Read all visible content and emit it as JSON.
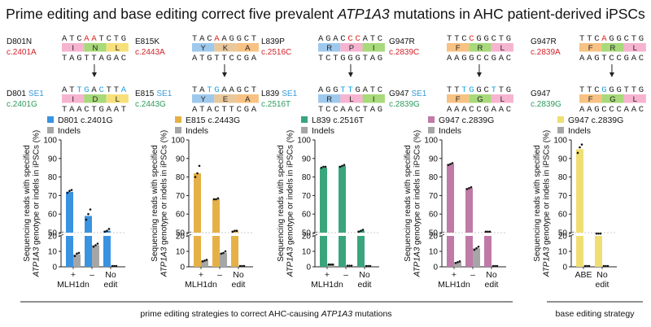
{
  "title": {
    "before": "Prime editing and base editing correct five prevalent ",
    "gene": "ATP1A3",
    "after": " mutations in AHC patient-derived iPSCs"
  },
  "colors": {
    "mutation_label": "#d2232a",
    "corrected_label": "#2e9a5e",
    "se_label": "#3a9ad9",
    "indels": "#a6a6a6",
    "highlight_base_top": "#e0241b",
    "highlight_base_bottom": "#1aa0e0",
    "codon_pink": "#f6b4d0",
    "codon_green": "#a8d97a",
    "codon_yellow": "#f7e07c",
    "codon_blue": "#9fc9ec",
    "codon_orange": "#f7c283",
    "codon_tan": "#e9c89b"
  },
  "panels": [
    {
      "mut_id": "D801N",
      "mut_cdna": "c.2401A",
      "mut_top_seq": "ATCAATCTG",
      "mut_aa": [
        "I",
        "N",
        "L"
      ],
      "mut_bottom_seq": "TAGTTAGAC",
      "corr_id": "D801",
      "corr_se": "SE1",
      "corr_cdna": "c.2401G",
      "corr_top_seq": "ATTGACTTA",
      "corr_aa": [
        "I",
        "D",
        "L"
      ],
      "corr_bottom_seq": "TAACTGAAT",
      "legend_main": "D801 c.2401G",
      "legend_indel": "Indels",
      "color": "#3a93e0"
    },
    {
      "mut_id": "E815K",
      "mut_cdna": "c.2443A",
      "mut_top_seq": "TACAAGGCT",
      "mut_aa": [
        "Y",
        "K",
        "A"
      ],
      "mut_bottom_seq": "ATGTTCCGA",
      "corr_id": "E815",
      "corr_se": "SE1",
      "corr_cdna": "c.2443G",
      "corr_top_seq": "TATGAAGCT",
      "corr_aa": [
        "Y",
        "E",
        "A"
      ],
      "corr_bottom_seq": "ATACTTCGA",
      "legend_main": "E815 c.2443G",
      "legend_indel": "Indels",
      "color": "#e5b147"
    },
    {
      "mut_id": "L839P",
      "mut_cdna": "c.2516C",
      "mut_top_seq": "AGACCCATC",
      "mut_aa": [
        "R",
        "P",
        "I"
      ],
      "mut_bottom_seq": "TCTGGGTAG",
      "corr_id": "L839",
      "corr_se": "SE1",
      "corr_cdna": "c.2516T",
      "corr_top_seq": "AGGTTGATC",
      "corr_aa": [
        "R",
        "L",
        "I"
      ],
      "corr_bottom_seq": "TCCAACTAG",
      "legend_main": "L839 c.2516T",
      "legend_indel": "Indels",
      "color": "#3aa57c"
    },
    {
      "mut_id": "G947R",
      "mut_cdna": "c.2839C",
      "mut_top_seq": "TTCCGGCTG",
      "mut_aa": [
        "F",
        "R",
        "L"
      ],
      "mut_bottom_seq": "AAGGCCGAC",
      "corr_id": "G947",
      "corr_se": "SE1",
      "corr_cdna": "c.2839G",
      "corr_top_seq": "TTTGGCTTG",
      "corr_aa": [
        "F",
        "G",
        "L"
      ],
      "corr_bottom_seq": "AAACCGAAC",
      "legend_main": "G947 c.2839G",
      "legend_indel": "Indels",
      "color": "#c07aa8"
    },
    {
      "mut_id": "G947R",
      "mut_cdna": "c.2839A",
      "mut_top_seq": "TTCAGGCTG",
      "mut_aa": [
        "F",
        "R",
        "L"
      ],
      "mut_bottom_seq": "AAGTCCGAC",
      "corr_id": "G947",
      "corr_se": "",
      "corr_cdna": "c.2839G",
      "corr_top_seq": "TTCGGGTTG",
      "corr_aa": [
        "F",
        "G",
        "L"
      ],
      "corr_bottom_seq": "AAGCCCAAC",
      "legend_main": "G947 c.2839G",
      "legend_indel": "Indels",
      "color": "#f1de72"
    }
  ],
  "chart_data": [
    {
      "type": "bar",
      "ylabel_line1": "Sequencing reads with specified",
      "ylabel_gene": "ATP1A3",
      "ylabel_after": " genotype or indels in iPSCs (%)",
      "y_ticks": [
        0,
        10,
        20,
        50,
        60,
        70,
        80,
        90,
        100
      ],
      "y_break": [
        20,
        50
      ],
      "categories": [
        "+\nMLH1dn",
        "–",
        "No\nedit"
      ],
      "series": [
        {
          "name": "D801 c.2401G",
          "values": [
            72,
            59,
            51
          ],
          "points": [
            [
              71.5,
              72.5,
              73
            ],
            [
              57,
              60,
              62.5
            ],
            [
              50.5,
              51,
              52
            ]
          ]
        },
        {
          "name": "Indels",
          "values": [
            8,
            14,
            0.5
          ],
          "points": [
            [
              7,
              8.5,
              9
            ],
            [
              13,
              14,
              15
            ],
            [
              0.5,
              0.5,
              0.5
            ]
          ]
        }
      ]
    },
    {
      "type": "bar",
      "ylabel_line1": "Sequencing reads with specified",
      "ylabel_gene": "ATP1A3",
      "ylabel_after": " genotype or indels in iPSCs (%)",
      "y_ticks": [
        0,
        10,
        20,
        50,
        60,
        70,
        80,
        90,
        100
      ],
      "y_break": [
        20,
        50
      ],
      "categories": [
        "+\nMLH1dn",
        "–",
        "No\nedit"
      ],
      "series": [
        {
          "name": "E815 c.2443G",
          "values": [
            82,
            68,
            51
          ],
          "points": [
            [
              80,
              82,
              86
            ],
            [
              68,
              68,
              68.5
            ],
            [
              50.5,
              51,
              51
            ]
          ]
        },
        {
          "name": "Indels",
          "values": [
            4,
            9,
            0.5
          ],
          "points": [
            [
              3.5,
              4,
              4.5
            ],
            [
              8.5,
              9,
              10
            ],
            [
              0.5,
              0.5,
              0.5
            ]
          ]
        }
      ]
    },
    {
      "type": "bar",
      "ylabel_line1": "Sequencing reads with specified",
      "ylabel_gene": "ATP1A3",
      "ylabel_after": " genotype or indels in iPSCs (%)",
      "y_ticks": [
        0,
        10,
        20,
        50,
        60,
        70,
        80,
        90,
        100
      ],
      "y_break": [
        20,
        50
      ],
      "categories": [
        "+\nMLH1dn",
        "–",
        "No\nedit"
      ],
      "series": [
        {
          "name": "L839 c.2516T",
          "values": [
            85,
            86,
            51
          ],
          "points": [
            [
              85,
              85.5,
              85.5
            ],
            [
              85.5,
              86,
              86.5
            ],
            [
              50.5,
              51,
              51.5
            ]
          ]
        },
        {
          "name": "Indels",
          "values": [
            1.5,
            0.7,
            0.5
          ],
          "points": [
            [
              1.5,
              1.5,
              1.5
            ],
            [
              0.7,
              0.7,
              0.7
            ],
            [
              0.5,
              0.5,
              0.5
            ]
          ]
        }
      ]
    },
    {
      "type": "bar",
      "ylabel_line1": "Sequencing reads with specified",
      "ylabel_gene": "ATP1A3",
      "ylabel_after": " genotype or indels in iPSCs (%)",
      "y_ticks": [
        0,
        10,
        20,
        50,
        60,
        70,
        80,
        90,
        100
      ],
      "y_break": [
        20,
        50
      ],
      "categories": [
        "+\nMLH1dn",
        "–",
        "No\nedit"
      ],
      "series": [
        {
          "name": "G947 c.2839G",
          "values": [
            87,
            74,
            50.5
          ],
          "points": [
            [
              86.5,
              87,
              87.5
            ],
            [
              73.5,
              74,
              74.5
            ],
            [
              50.5,
              50.5,
              50.5
            ]
          ]
        },
        {
          "name": "Indels",
          "values": [
            3,
            12,
            0.5
          ],
          "points": [
            [
              2.5,
              3,
              3.5
            ],
            [
              11,
              12,
              13
            ],
            [
              0.5,
              0.5,
              0.5
            ]
          ]
        }
      ]
    },
    {
      "type": "bar",
      "ylabel_line1": "Sequencing reads with specified",
      "ylabel_gene": "ATP1A3",
      "ylabel_after": " genotype or indels in iPSCs (%)",
      "y_ticks": [
        0,
        10,
        20,
        50,
        60,
        70,
        80,
        90,
        100
      ],
      "y_break": [
        20,
        50
      ],
      "categories": [
        "ABE",
        "No\nedit"
      ],
      "series": [
        {
          "name": "G947 c.2839G",
          "values": [
            95,
            49.5
          ],
          "points": [
            [
              93,
              96,
              97.5
            ],
            [
              49.5,
              49.5,
              49.5
            ]
          ]
        },
        {
          "name": "Indels",
          "values": [
            0.5,
            0.5
          ],
          "points": [
            [
              0.5,
              0.5,
              0.5
            ],
            [
              0.5,
              0.5,
              0.5
            ]
          ]
        }
      ]
    }
  ],
  "footer": {
    "prime_before": "prime editing strategies to correct AHC-causing ",
    "prime_gene": "ATP1A3",
    "prime_after": " mutations",
    "base": "base editing strategy"
  }
}
